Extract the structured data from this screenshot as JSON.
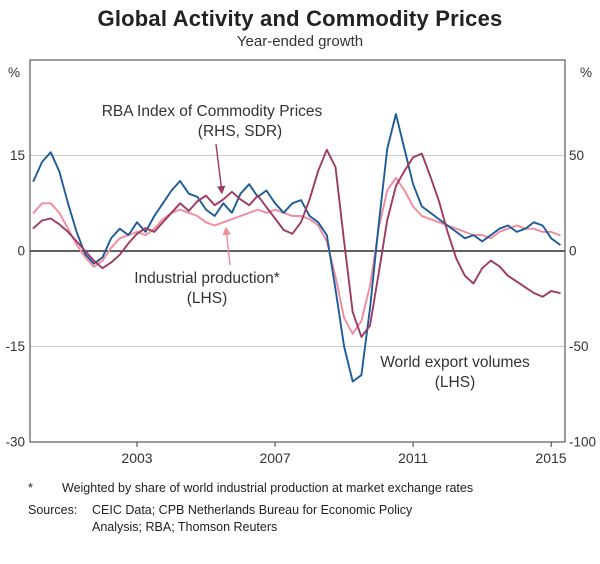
{
  "annotations": {
    "commodity": {
      "line1": "RBA Index of Commodity Prices",
      "line2": "(RHS, SDR)",
      "color": "#9e3a62"
    },
    "industrial": {
      "line1": "Industrial production*",
      "line2": "(LHS)",
      "color": "#f08c9b"
    },
    "exports": {
      "line1": "World export volumes",
      "line2": "(LHS)",
      "color": "#1e5c99"
    }
  },
  "footnote": {
    "marker": "*",
    "text": "Weighted by share of world industrial production at market exchange rates"
  },
  "sources": {
    "label": "Sources:",
    "text": "CEIC Data; CPB Netherlands Bureau for Economic Policy Analysis; RBA; Thomson Reuters"
  },
  "chart_data": {
    "type": "line",
    "title": "Global Activity and Commodity Prices",
    "subtitle": "Year-ended growth",
    "left_axis": {
      "unit": "%",
      "ticks": [
        15,
        0,
        -15,
        -30
      ],
      "range": [
        -30,
        30
      ]
    },
    "right_axis": {
      "unit": "%",
      "ticks": [
        50,
        0,
        -50,
        -100
      ],
      "range": [
        -100,
        100
      ]
    },
    "x_axis": {
      "ticks": [
        2003,
        2007,
        2011,
        2015
      ],
      "range": [
        1999.9,
        2015.4
      ]
    },
    "grid": "horizontal",
    "x": [
      2000,
      2000.25,
      2000.5,
      2000.75,
      2001,
      2001.25,
      2001.5,
      2001.75,
      2002,
      2002.25,
      2002.5,
      2002.75,
      2003,
      2003.25,
      2003.5,
      2003.75,
      2004,
      2004.25,
      2004.5,
      2004.75,
      2005,
      2005.25,
      2005.5,
      2005.75,
      2006,
      2006.25,
      2006.5,
      2006.75,
      2007,
      2007.25,
      2007.5,
      2007.75,
      2008,
      2008.25,
      2008.5,
      2008.75,
      2009,
      2009.25,
      2009.5,
      2009.75,
      2010,
      2010.25,
      2010.5,
      2010.75,
      2011,
      2011.25,
      2011.5,
      2011.75,
      2012,
      2012.25,
      2012.5,
      2012.75,
      2013,
      2013.25,
      2013.5,
      2013.75,
      2014,
      2014.25,
      2014.5,
      2014.75,
      2015,
      2015.25
    ],
    "series": [
      {
        "name": "Industrial production (LHS)",
        "slug": "industrial-production",
        "axis": "left",
        "color": "#f08c9b",
        "values": [
          6,
          7.5,
          7.5,
          6,
          3.5,
          1,
          -1,
          -2.5,
          -1.5,
          0.5,
          2,
          2.5,
          3,
          2.5,
          3.5,
          5,
          6,
          6.5,
          6,
          5.5,
          4.5,
          4,
          4.5,
          5,
          5.5,
          6,
          6.5,
          6,
          6.5,
          6,
          5.5,
          5.5,
          5,
          4,
          1.5,
          -4,
          -10.5,
          -13,
          -11,
          -5.5,
          3.5,
          9.5,
          11.5,
          9.5,
          7,
          5.5,
          5,
          4.5,
          4,
          3.5,
          3,
          2.5,
          2.5,
          2,
          3,
          3.5,
          4,
          3.5,
          3.5,
          3,
          3,
          2.5
        ]
      },
      {
        "name": "World export volumes (LHS)",
        "slug": "world-export-volumes",
        "axis": "left",
        "color": "#1e5c99",
        "values": [
          11,
          14,
          15.5,
          12.5,
          7.5,
          3,
          -0.5,
          -2,
          -1,
          2,
          3.5,
          2.5,
          4.5,
          3,
          5.5,
          7.5,
          9.5,
          11,
          9,
          8.5,
          6.5,
          5.5,
          7.5,
          6,
          9,
          10.5,
          8.5,
          9.5,
          7.5,
          6,
          7.5,
          8,
          5.5,
          4.5,
          2.5,
          -6,
          -15,
          -20.5,
          -19.5,
          -9,
          4,
          16,
          21.5,
          16,
          10.5,
          7,
          6,
          5,
          4,
          3,
          2,
          2.5,
          1.5,
          2.5,
          3.5,
          4,
          3,
          3.5,
          4.5,
          4,
          2,
          1
        ]
      },
      {
        "name": "RBA Index of Commodity Prices (RHS, SDR)",
        "slug": "commodity-prices",
        "axis": "right",
        "color": "#9e3a62",
        "values": [
          12,
          16,
          17,
          14,
          10,
          5,
          0,
          -5,
          -9,
          -6,
          -2,
          4,
          9,
          12,
          10,
          15,
          20,
          25,
          21,
          26,
          29,
          24,
          27,
          31,
          27,
          24,
          29,
          23,
          17,
          11,
          9,
          15,
          27,
          42,
          53,
          44,
          5,
          -32,
          -45,
          -39,
          -12,
          16,
          34,
          42,
          49,
          51,
          39,
          26,
          10,
          -4,
          -13,
          -17,
          -9,
          -5,
          -8,
          -13,
          -16,
          -19,
          -22,
          -24,
          -21,
          -22
        ]
      }
    ]
  }
}
